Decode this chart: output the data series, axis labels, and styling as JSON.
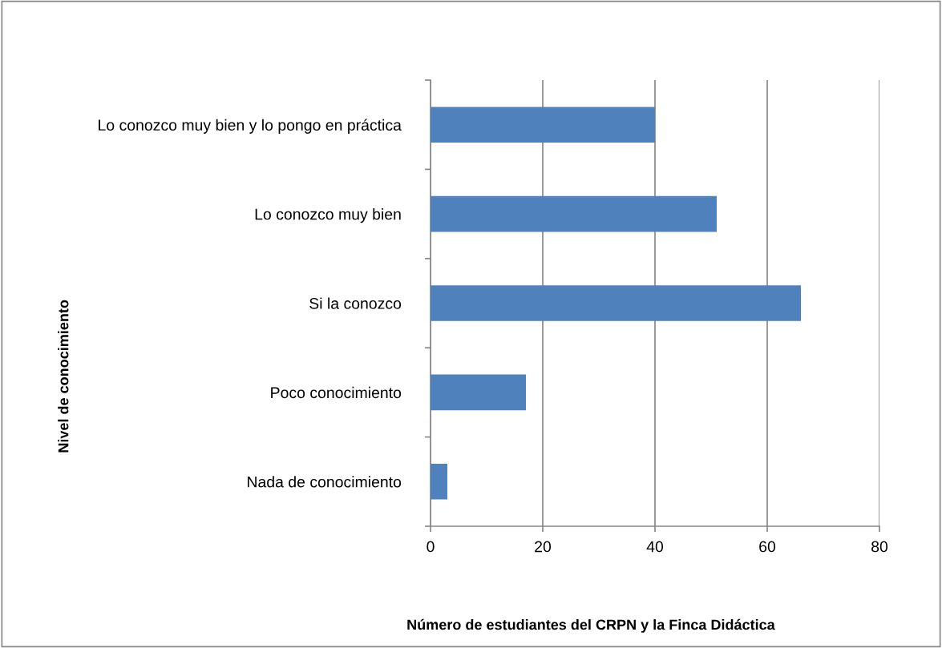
{
  "chart_data": {
    "type": "bar",
    "orientation": "horizontal",
    "categories": [
      "Lo conozco muy bien y lo pongo en práctica",
      "Lo conozco muy bien",
      "Si la conozco",
      "Poco conocimiento",
      "Nada de conocimiento"
    ],
    "values": [
      40,
      51,
      66,
      17,
      3
    ],
    "color": "#4f81bd",
    "xlabel": "Número de estudiantes del CRPN y la Finca Didáctica",
    "ylabel": "Nivel de conocimiento",
    "xlim": [
      0,
      80
    ],
    "xticks": [
      0,
      20,
      40,
      60,
      80
    ],
    "grid": "x"
  }
}
